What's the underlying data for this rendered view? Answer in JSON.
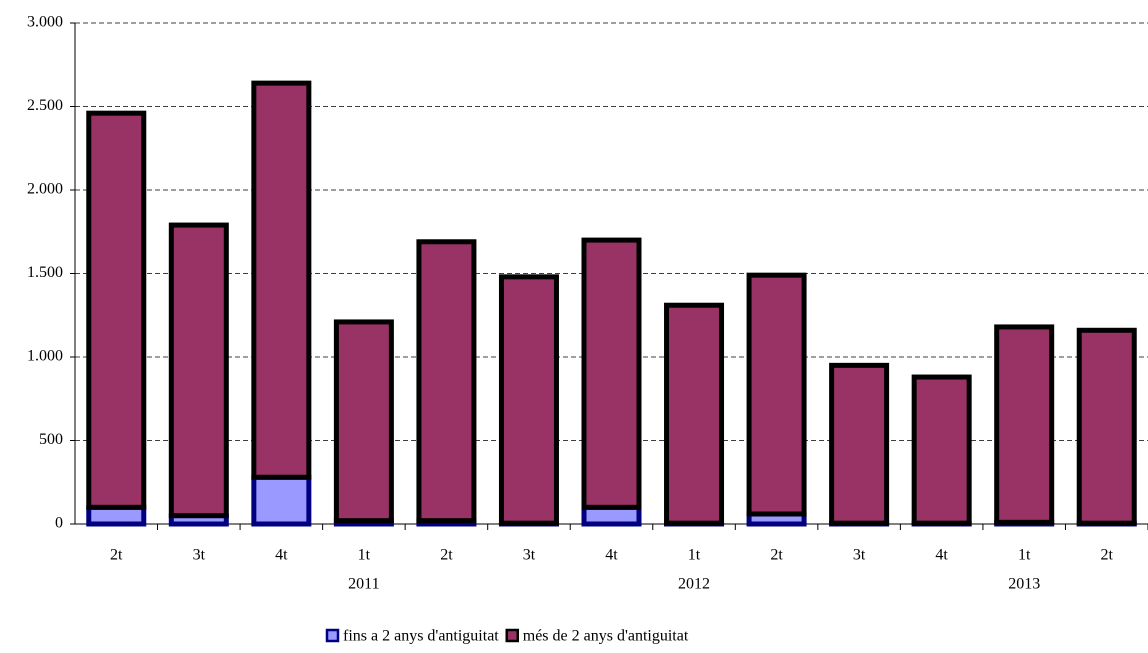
{
  "chart_data": {
    "type": "stacked_bar",
    "categories": [
      "2t",
      "3t",
      "4t",
      "1t",
      "2t",
      "3t",
      "4t",
      "1t",
      "2t",
      "3t",
      "4t",
      "1t",
      "2t"
    ],
    "year_labels": [
      null,
      null,
      null,
      "2011",
      null,
      null,
      null,
      "2012",
      null,
      null,
      null,
      "2013",
      null
    ],
    "series": [
      {
        "name": "fins a 2 anys d'antiguitat",
        "color": "#9999ff",
        "edge": "#000080",
        "values": [
          100,
          50,
          280,
          20,
          20,
          5,
          100,
          5,
          60,
          5,
          5,
          10,
          5
        ]
      },
      {
        "name": "més de 2 anys d'antiguitat",
        "color": "#993366",
        "edge": "#000000",
        "values": [
          2360,
          1740,
          2360,
          1190,
          1670,
          1475,
          1600,
          1305,
          1430,
          945,
          875,
          1170,
          1155
        ]
      }
    ],
    "ylim": [
      0,
      3000
    ],
    "yticks": [
      0,
      500,
      {
        "value": 1000,
        "label": "1.000"
      },
      {
        "value": 1500,
        "label": "1.500"
      },
      {
        "value": 2000,
        "label": "2.000"
      },
      {
        "value": 2500,
        "label": "2.500"
      },
      {
        "value": 3000,
        "label": "3.000"
      }
    ],
    "grid": true
  }
}
